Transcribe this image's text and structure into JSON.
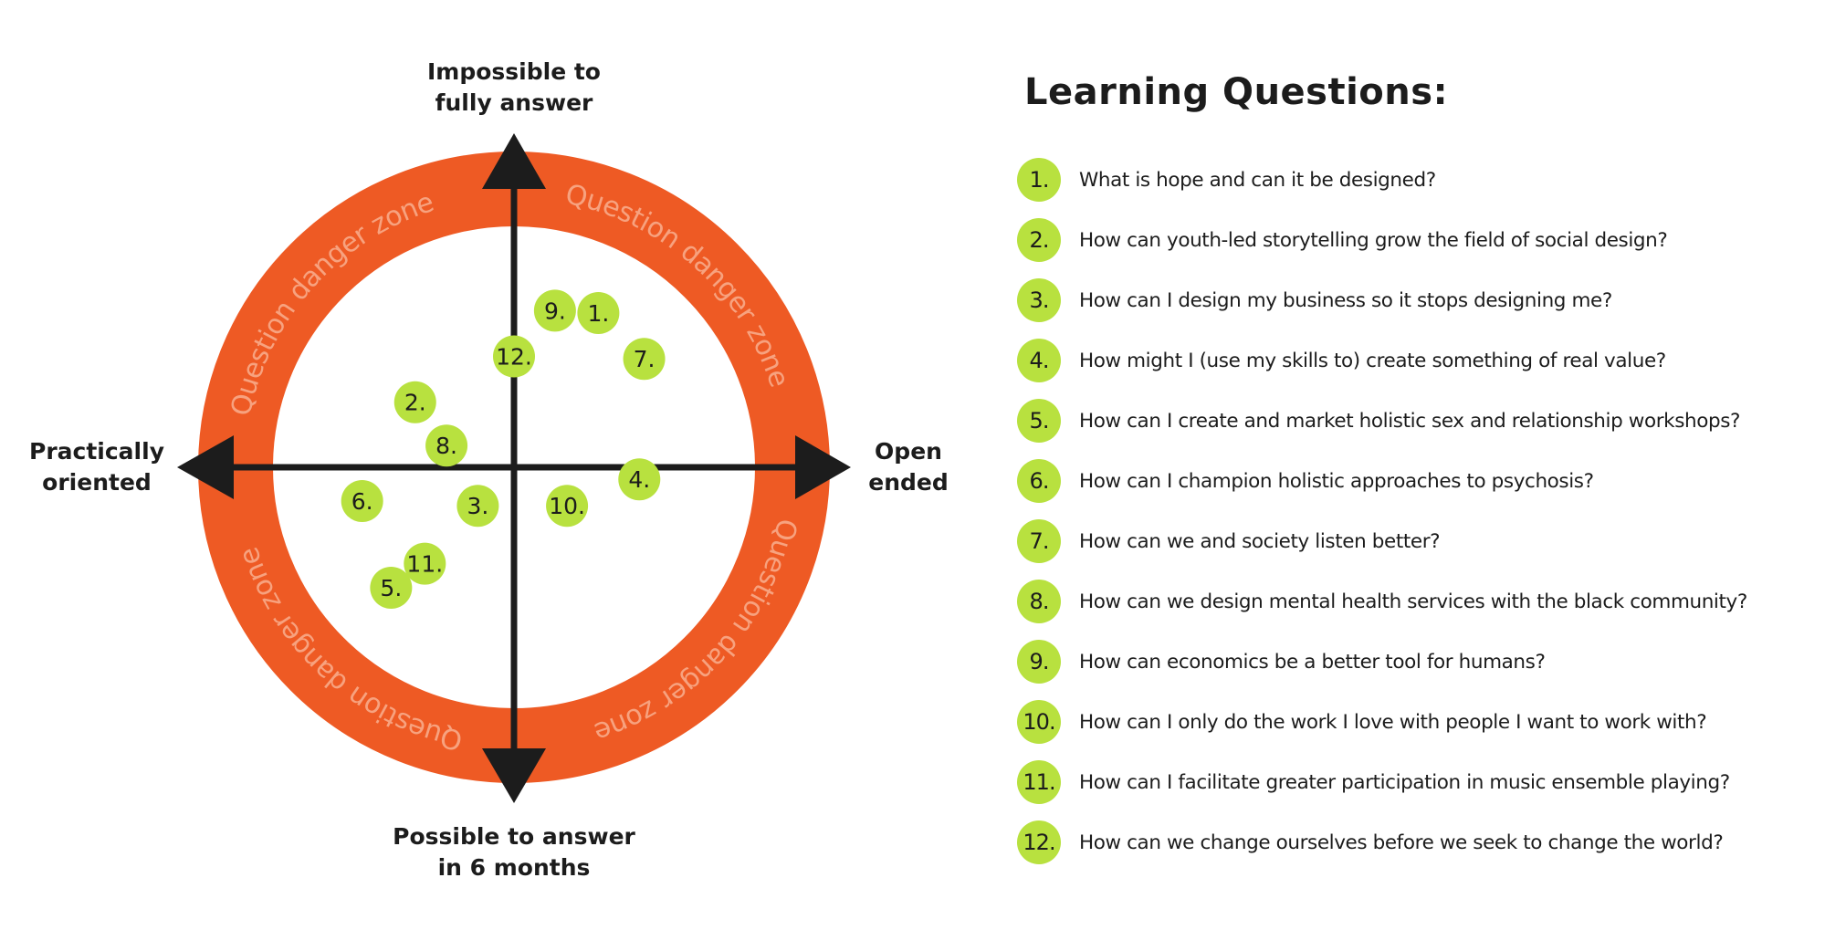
{
  "axes": {
    "top": [
      "Impossible to",
      "fully answer"
    ],
    "bottom": [
      "Possible to answer",
      "in 6 months"
    ],
    "left": [
      "Practically",
      "oriented"
    ],
    "right": [
      "Open",
      "ended"
    ]
  },
  "ring_label": "Question danger zone",
  "colors": {
    "ring": "#ee5a24",
    "ring_text": "#f7a27f",
    "badge": "#b8e13f",
    "axis": "#1c1c1c"
  },
  "markers": [
    {
      "label": "1.",
      "x": 0.35,
      "y": 0.64
    },
    {
      "label": "2.",
      "x": -0.41,
      "y": 0.27
    },
    {
      "label": "3.",
      "x": -0.15,
      "y": -0.16
    },
    {
      "label": "4.",
      "x": 0.52,
      "y": -0.05
    },
    {
      "label": "5.",
      "x": -0.51,
      "y": -0.5
    },
    {
      "label": "6.",
      "x": -0.63,
      "y": -0.14
    },
    {
      "label": "7.",
      "x": 0.54,
      "y": 0.45
    },
    {
      "label": "8.",
      "x": -0.28,
      "y": 0.09
    },
    {
      "label": "9.",
      "x": 0.17,
      "y": 0.65
    },
    {
      "label": "10.",
      "x": 0.22,
      "y": -0.16
    },
    {
      "label": "11.",
      "x": -0.37,
      "y": -0.4
    },
    {
      "label": "12.",
      "x": 0.0,
      "y": 0.46
    }
  ],
  "list": {
    "title": "Learning Questions:",
    "items": [
      {
        "num": "1.",
        "text": "What is hope and can it be designed?"
      },
      {
        "num": "2.",
        "text": "How can youth-led storytelling grow the field of social design?"
      },
      {
        "num": "3.",
        "text": "How can I design my business so it stops designing me?"
      },
      {
        "num": "4.",
        "text": "How might I (use my skills to) create something of real value?"
      },
      {
        "num": "5.",
        "text": "How can I create and market holistic sex and relationship workshops?"
      },
      {
        "num": "6.",
        "text": "How can I champion holistic approaches to psychosis?"
      },
      {
        "num": "7.",
        "text": "How can we and society listen better?"
      },
      {
        "num": "8.",
        "text": "How can we design mental health services with the black community?"
      },
      {
        "num": "9.",
        "text": "How can economics be a better tool for humans?"
      },
      {
        "num": "10.",
        "text": "How can I only do the work I love with people I want to work with?"
      },
      {
        "num": "11.",
        "text": "How can I facilitate greater participation in music ensemble playing?"
      },
      {
        "num": "12.",
        "text": "How can we change ourselves before we seek to change the world?"
      }
    ]
  }
}
